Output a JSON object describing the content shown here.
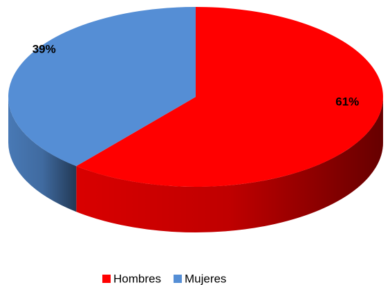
{
  "chart_data": {
    "type": "pie3d",
    "categories": [
      "Hombres",
      "Mujeres"
    ],
    "values": [
      61,
      39
    ],
    "value_labels": [
      "61%",
      "39%"
    ],
    "colors": [
      "#ff0000",
      "#558ed5"
    ],
    "legend": "bottom"
  }
}
